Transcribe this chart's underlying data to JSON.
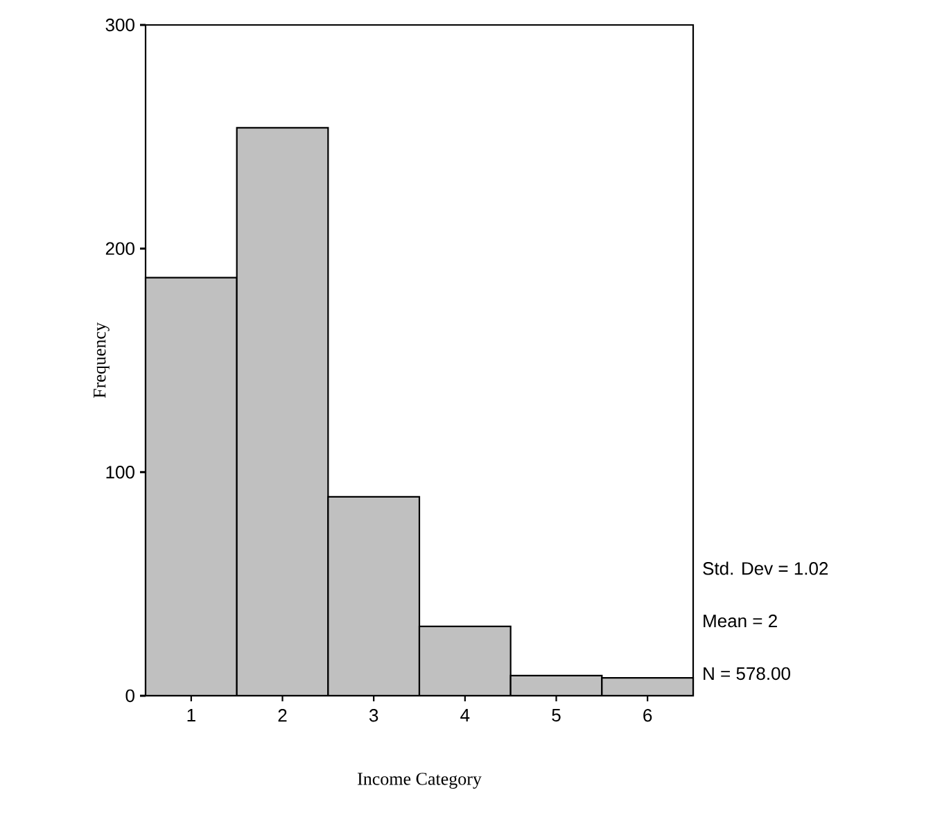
{
  "chart_data": {
    "type": "histogram",
    "xlabel": "Income Category",
    "ylabel": "Frequency",
    "bins": [
      0.5,
      1.5,
      2.5,
      3.5,
      4.5,
      5.5,
      6.5
    ],
    "values": [
      187,
      254,
      89,
      31,
      9,
      8
    ],
    "color": "#c0c0c0",
    "xlim": [
      0.5,
      6.5
    ],
    "xticks": [
      1,
      2,
      3,
      4,
      5,
      6
    ],
    "ylim": [
      0,
      300
    ],
    "yticks": [
      0,
      100,
      200,
      300
    ],
    "annotations": [
      "Std. Dev = 1.02",
      "Mean = 2",
      "N = 578.00"
    ]
  }
}
